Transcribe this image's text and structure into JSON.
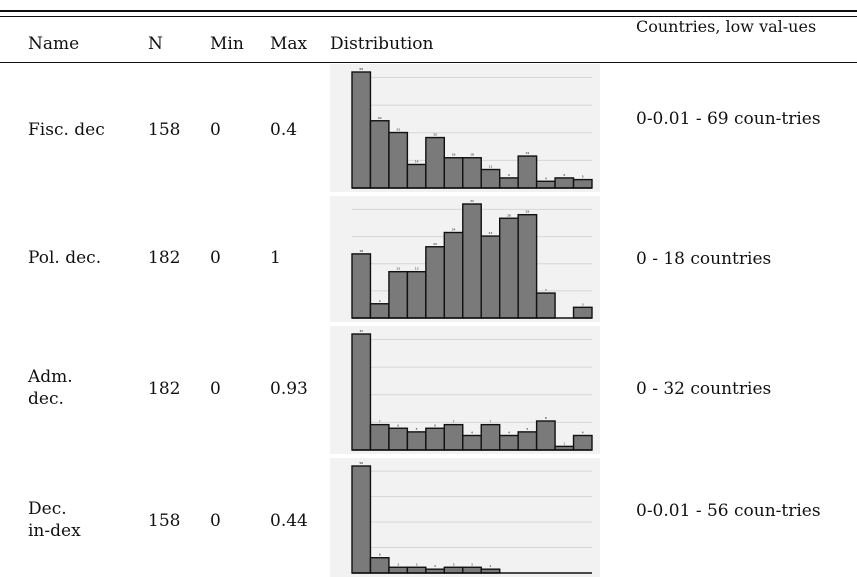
{
  "header": {
    "name": "Name",
    "n": "N",
    "min": "Min",
    "max": "Max",
    "distribution": "Distribution",
    "low_values": "Countries, low val-ues"
  },
  "rows": [
    {
      "name": "Fisc. dec",
      "n": "158",
      "min": "0",
      "max": "0.4",
      "low": "0-0.01 - 69 coun-tries",
      "hist": [
        69,
        40,
        33,
        14,
        30,
        18,
        18,
        11,
        6,
        19,
        4,
        6,
        5
      ]
    },
    {
      "name": "Pol. dec.",
      "n": "182",
      "min": "0",
      "max": "1",
      "low": "0 - 18 countries",
      "hist": [
        18,
        4,
        13,
        13,
        20,
        24,
        32,
        23,
        28,
        29,
        7,
        0,
        3
      ]
    },
    {
      "name": "Adm. dec.",
      "n": "182",
      "min": "0",
      "max": "0.93",
      "low": "0 - 32 countries",
      "hist": [
        32,
        7,
        6,
        5,
        6,
        7,
        4,
        7,
        4,
        5,
        8,
        1,
        4
      ]
    },
    {
      "name": "Dec. in-dex",
      "n": "158",
      "min": "0",
      "max": "0.44",
      "low": "0-0.01 - 56 coun-tries",
      "hist": [
        56,
        8,
        3,
        3,
        2,
        3,
        3,
        2,
        0,
        0,
        0,
        0,
        0
      ]
    }
  ]
}
